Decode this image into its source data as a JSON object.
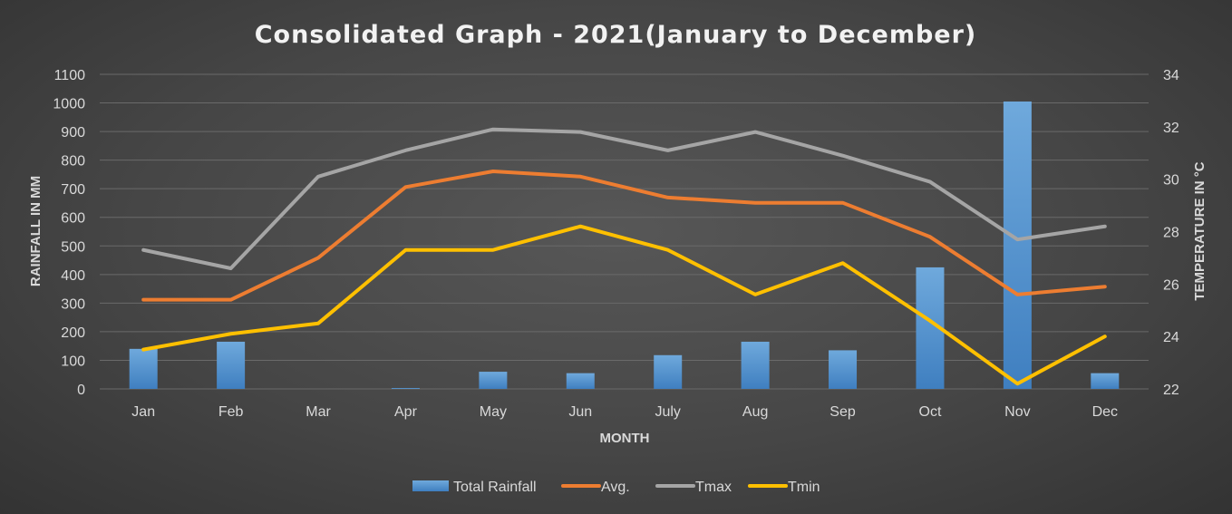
{
  "chart_data": {
    "type": "bar+line",
    "title": "Consolidated Graph - 2021(January to December)",
    "xlabel": "MONTH",
    "ylabel": "RAINFALL IN MM",
    "y2label": "TEMPERATURE IN °C",
    "categories": [
      "Jan",
      "Feb",
      "Mar",
      "Apr",
      "May",
      "Jun",
      "July",
      "Aug",
      "Sep",
      "Oct",
      "Nov",
      "Dec"
    ],
    "ylim": [
      0,
      1100
    ],
    "yticks": [
      0,
      100,
      200,
      300,
      400,
      500,
      600,
      700,
      800,
      900,
      1000,
      1100
    ],
    "y2lim": [
      22,
      34
    ],
    "y2ticks": [
      22,
      24,
      26,
      28,
      30,
      32,
      34
    ],
    "grid": true,
    "legend_position": "bottom",
    "series": [
      {
        "name": "Total Rainfall",
        "type": "bar",
        "axis": "left",
        "color": "#5b9bd5",
        "values": [
          140,
          165,
          0,
          3,
          60,
          55,
          118,
          165,
          135,
          425,
          1005,
          55
        ]
      },
      {
        "name": "Avg.",
        "type": "line",
        "axis": "right",
        "color": "#ed7d31",
        "values": [
          25.4,
          25.4,
          27.0,
          29.7,
          30.3,
          30.1,
          29.3,
          29.1,
          29.1,
          27.8,
          25.6,
          25.9
        ]
      },
      {
        "name": "Tmax",
        "type": "line",
        "axis": "right",
        "color": "#a5a5a5",
        "values": [
          27.3,
          26.6,
          30.1,
          31.1,
          31.9,
          31.8,
          31.1,
          31.8,
          30.9,
          29.9,
          27.7,
          28.2
        ]
      },
      {
        "name": "Tmin",
        "type": "line",
        "axis": "right",
        "color": "#ffc000",
        "values": [
          23.5,
          24.1,
          24.5,
          27.3,
          27.3,
          28.2,
          27.3,
          25.6,
          26.8,
          24.6,
          22.2,
          24.0
        ]
      }
    ]
  }
}
